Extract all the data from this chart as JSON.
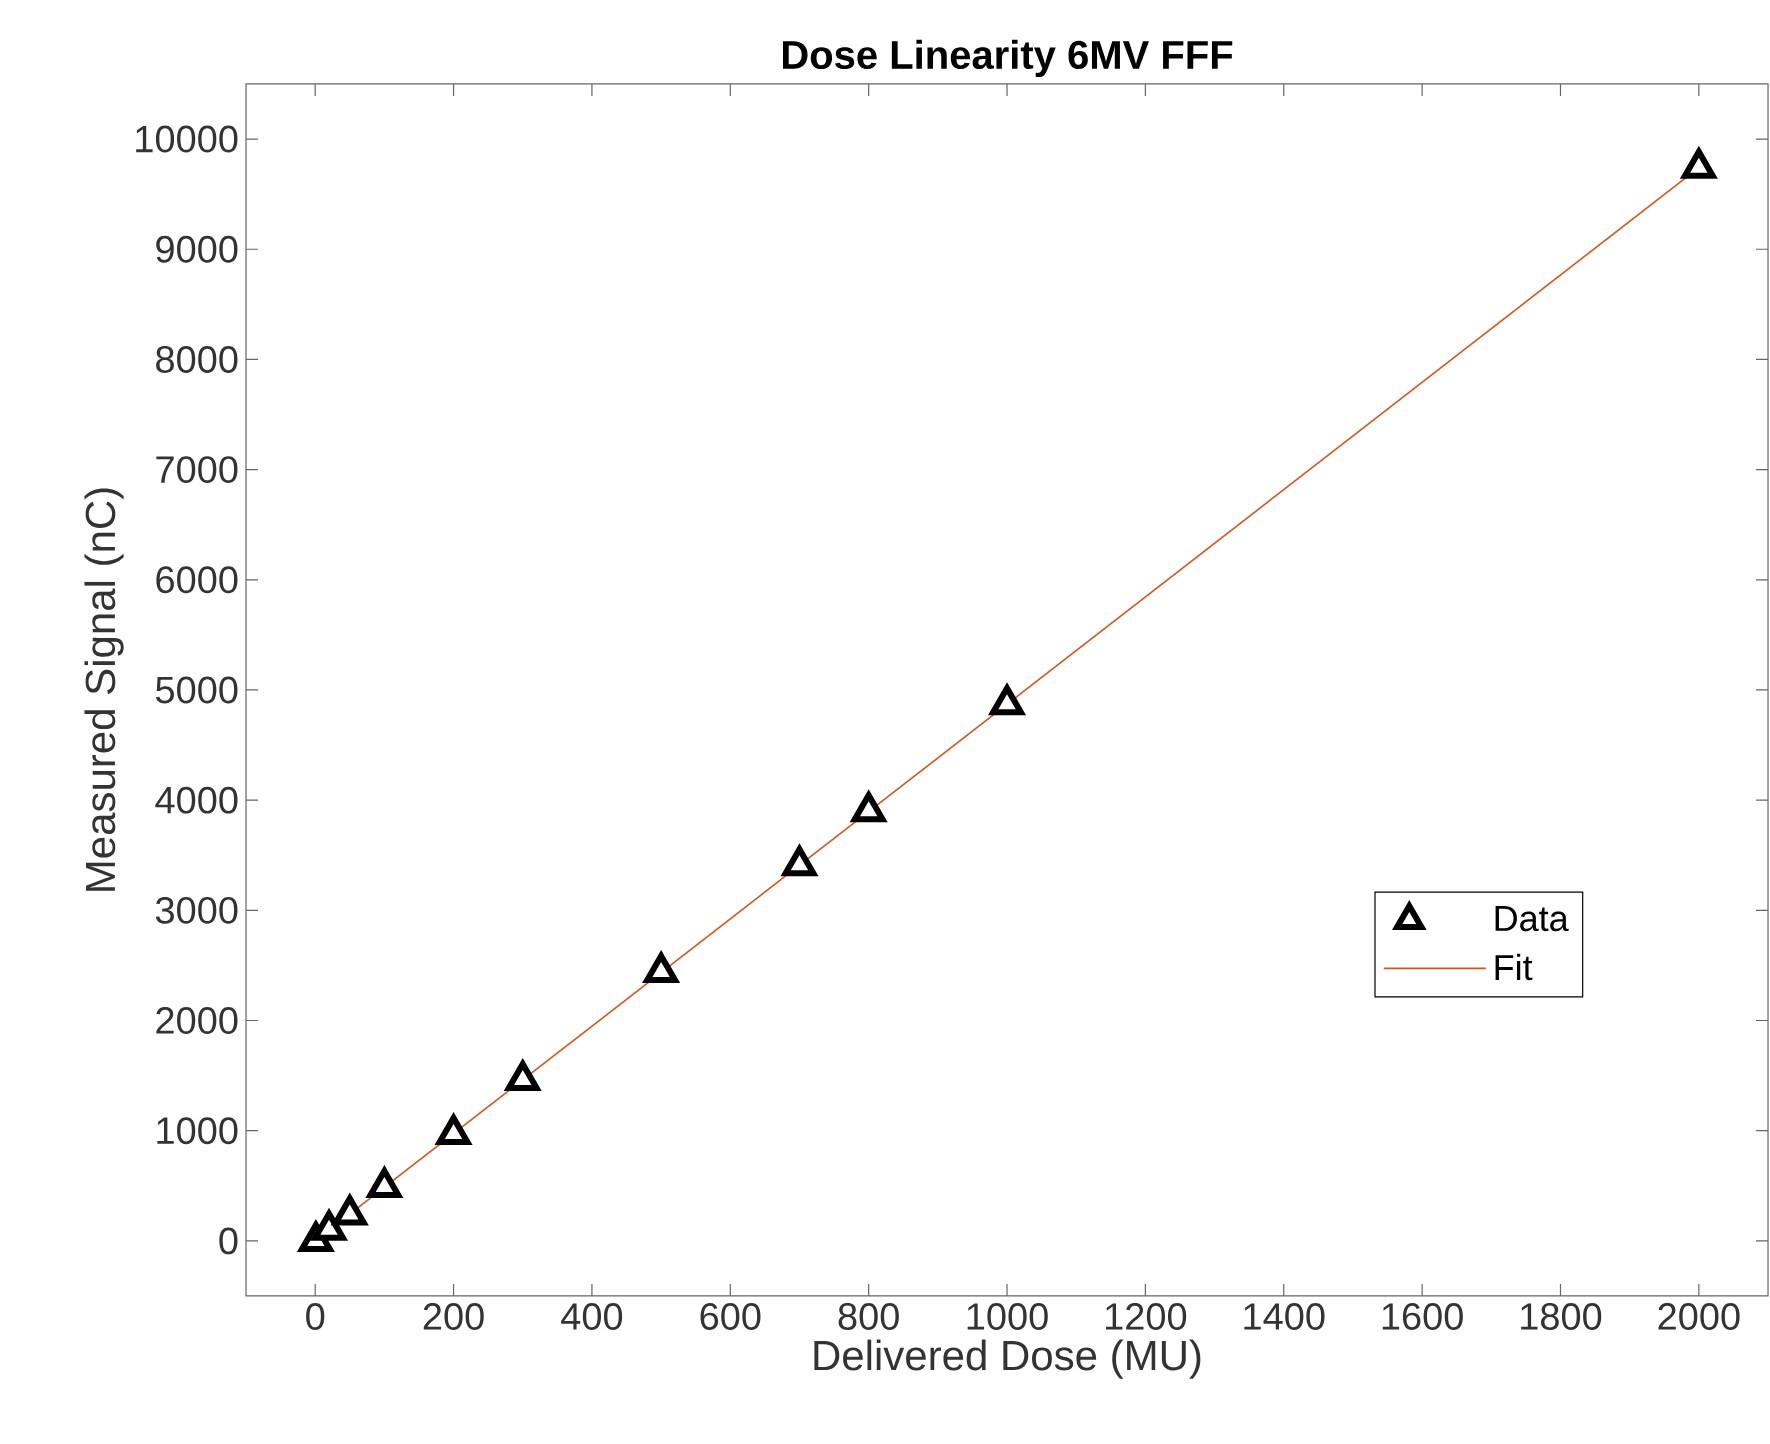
{
  "chart_data": {
    "type": "scatter",
    "title": "Dose Linearity 6MV FFF",
    "xlabel": "Delivered Dose (MU)",
    "ylabel": "Measured Signal (nC)",
    "xlim": [
      -100,
      2100
    ],
    "ylim": [
      -500,
      10500
    ],
    "xticks": [
      0,
      200,
      400,
      600,
      800,
      1000,
      1200,
      1400,
      1600,
      1800,
      2000
    ],
    "yticks": [
      0,
      1000,
      2000,
      3000,
      4000,
      5000,
      6000,
      7000,
      8000,
      9000,
      10000
    ],
    "grid": false,
    "legend": "right",
    "series": [
      {
        "name": "Data",
        "marker": "triangle",
        "color": "#000000",
        "x": [
          1,
          20,
          50,
          100,
          200,
          300,
          500,
          700,
          800,
          1000,
          2000
        ],
        "values": [
          0,
          100,
          240,
          490,
          970,
          1460,
          2440,
          3410,
          3900,
          4870,
          9740
        ]
      },
      {
        "name": "Fit",
        "type": "line",
        "color": "#d95319",
        "x": [
          0,
          2000
        ],
        "values": [
          0,
          9740
        ]
      }
    ]
  }
}
